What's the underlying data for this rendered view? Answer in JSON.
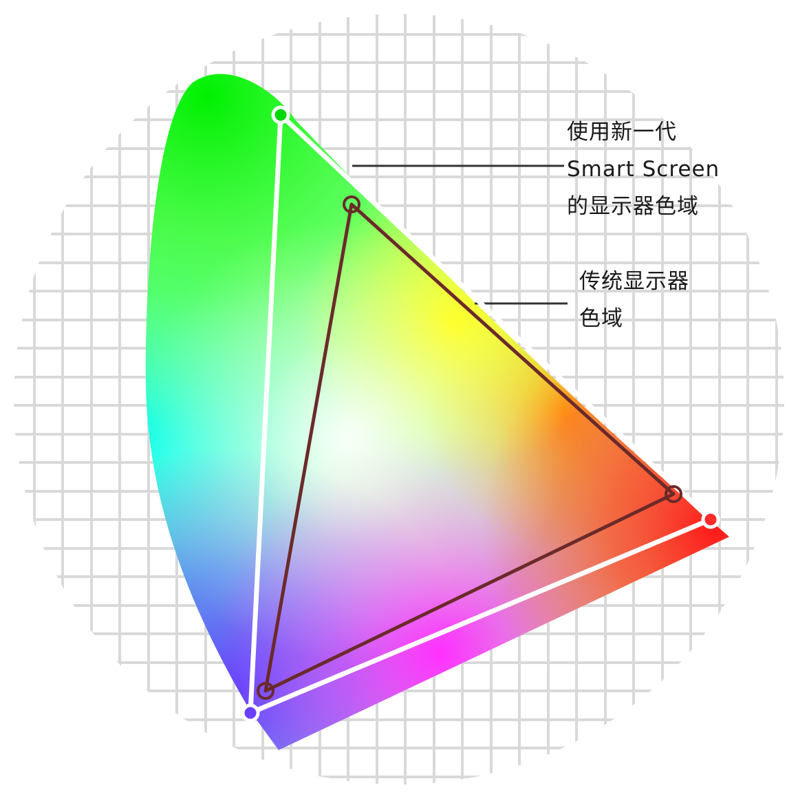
{
  "diagram": {
    "labels": {
      "new_gamut": [
        "使用新一代",
        "Smart Screen",
        "的显示器色域"
      ],
      "traditional_gamut": [
        "传统显示器",
        "色域"
      ]
    },
    "colors": {
      "grid": "#d9d9d9",
      "new_gamut_outline": "#ffffff",
      "traditional_gamut_outline": "#6b2a2a",
      "leader_line": "#333333",
      "green_vertex": "#00d800",
      "red_vertex": "#ff2a2a",
      "blue_vertex": "#6a40ff"
    }
  }
}
